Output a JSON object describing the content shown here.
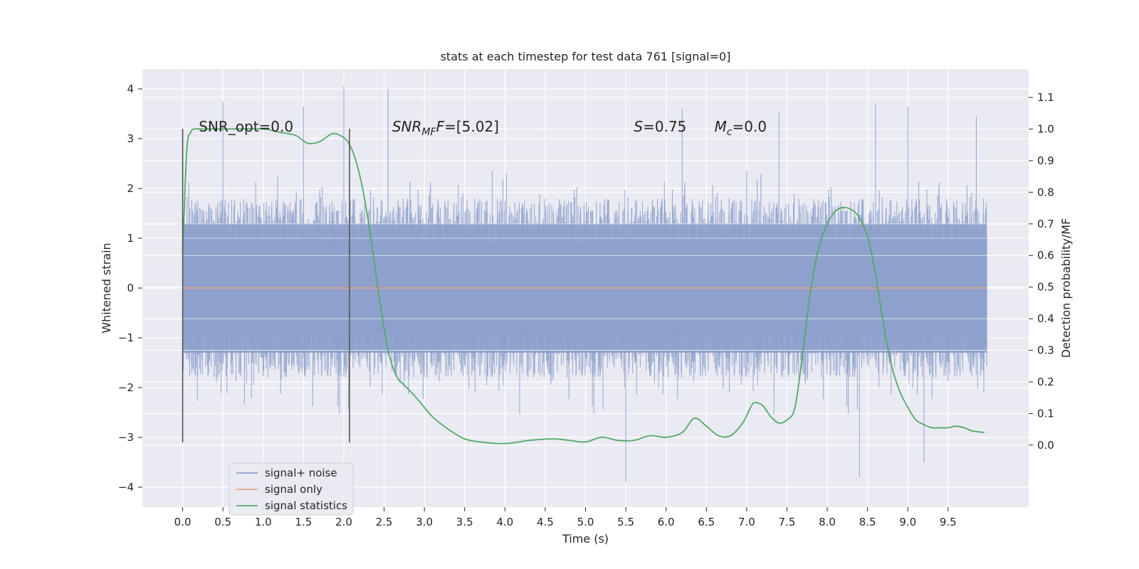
{
  "chart_data": {
    "type": "line",
    "title": "stats at each timestep for test data 761 [signal=0]",
    "xlabel": "Time (s)",
    "ylabel": "Whitened strain",
    "y2label": "Detection probability/MF",
    "xlim": [
      -0.5,
      10.5
    ],
    "ylim": [
      -4.4,
      4.4
    ],
    "y2lim": [
      -0.196,
      1.19
    ],
    "xticks": [
      "0.0",
      "0.5",
      "1.0",
      "1.5",
      "2.0",
      "2.5",
      "3.0",
      "3.5",
      "4.0",
      "4.5",
      "5.0",
      "5.5",
      "6.0",
      "6.5",
      "7.0",
      "7.5",
      "8.0",
      "8.5",
      "9.0",
      "9.5"
    ],
    "yticks": [
      "−4",
      "−3",
      "−2",
      "−1",
      "0",
      "1",
      "2",
      "3",
      "4"
    ],
    "y2ticks": [
      "0.0",
      "0.1",
      "0.2",
      "0.3",
      "0.4",
      "0.5",
      "0.6",
      "0.7",
      "0.8",
      "0.9",
      "1.0",
      "1.1"
    ],
    "grid": true,
    "legend_position": "lower-left",
    "annotations": {
      "snr_opt": "SNR_opt=0.0",
      "snr_mf_base": "SNR",
      "snr_mf_sub": "MF",
      "snr_mf_value": "=[5.02]",
      "s_base": "S",
      "s_value": "=0.75",
      "mc_base": "M",
      "mc_sub": "c",
      "mc_value": "=0.0"
    },
    "vlines": [
      {
        "x": 0.0,
        "ymin": -3.1,
        "ymax": 3.2
      },
      {
        "x": 2.07,
        "ymin": -3.1,
        "ymax": 3.2
      }
    ],
    "series": [
      {
        "name": "signal+ noise",
        "color": "#8da0cb",
        "axis": "left",
        "style": "noise",
        "x_range": [
          0.0,
          9.98
        ],
        "envelope_typical": [
          -1.9,
          1.9
        ],
        "envelope_max": [
          -3.9,
          4.05
        ],
        "spike_points": [
          [
            0.5,
            3.75
          ],
          [
            1.5,
            3.65
          ],
          [
            2.0,
            4.05
          ],
          [
            2.55,
            4.0
          ],
          [
            5.5,
            -3.9
          ],
          [
            6.2,
            3.6
          ],
          [
            7.4,
            3.55
          ],
          [
            8.4,
            -3.8
          ],
          [
            8.6,
            3.7
          ],
          [
            9.0,
            3.65
          ],
          [
            9.2,
            -3.5
          ],
          [
            9.85,
            3.45
          ]
        ]
      },
      {
        "name": "signal only",
        "color": "#e5a48e",
        "axis": "left",
        "x": [
          0.0,
          9.98
        ],
        "y": [
          0.0,
          0.0
        ]
      },
      {
        "name": "signal statistics",
        "color": "#55a868",
        "axis": "right",
        "x": [
          0.0,
          0.05,
          0.1,
          0.15,
          0.25,
          0.5,
          1.0,
          1.2,
          1.4,
          1.55,
          1.7,
          1.85,
          1.95,
          2.05,
          2.15,
          2.25,
          2.35,
          2.45,
          2.55,
          2.65,
          2.75,
          2.9,
          3.1,
          3.3,
          3.5,
          3.7,
          4.0,
          4.3,
          4.6,
          4.8,
          5.0,
          5.2,
          5.4,
          5.6,
          5.8,
          6.0,
          6.2,
          6.35,
          6.5,
          6.65,
          6.8,
          6.95,
          7.05,
          7.1,
          7.2,
          7.3,
          7.4,
          7.5,
          7.6,
          7.7,
          7.8,
          7.9,
          8.0,
          8.1,
          8.2,
          8.3,
          8.4,
          8.5,
          8.6,
          8.7,
          8.8,
          8.9,
          9.0,
          9.1,
          9.2,
          9.3,
          9.4,
          9.5,
          9.6,
          9.7,
          9.8,
          9.95
        ],
        "y": [
          0.6,
          0.93,
          0.99,
          1.0,
          1.0,
          1.0,
          1.0,
          0.99,
          0.98,
          0.955,
          0.96,
          0.985,
          0.98,
          0.96,
          0.9,
          0.79,
          0.63,
          0.45,
          0.3,
          0.22,
          0.19,
          0.15,
          0.09,
          0.05,
          0.02,
          0.01,
          0.005,
          0.015,
          0.02,
          0.015,
          0.01,
          0.025,
          0.015,
          0.015,
          0.03,
          0.025,
          0.04,
          0.085,
          0.06,
          0.03,
          0.03,
          0.07,
          0.12,
          0.135,
          0.125,
          0.09,
          0.07,
          0.08,
          0.12,
          0.3,
          0.5,
          0.63,
          0.7,
          0.74,
          0.752,
          0.745,
          0.72,
          0.66,
          0.54,
          0.38,
          0.25,
          0.17,
          0.12,
          0.08,
          0.065,
          0.055,
          0.055,
          0.055,
          0.06,
          0.055,
          0.045,
          0.04
        ]
      }
    ]
  }
}
